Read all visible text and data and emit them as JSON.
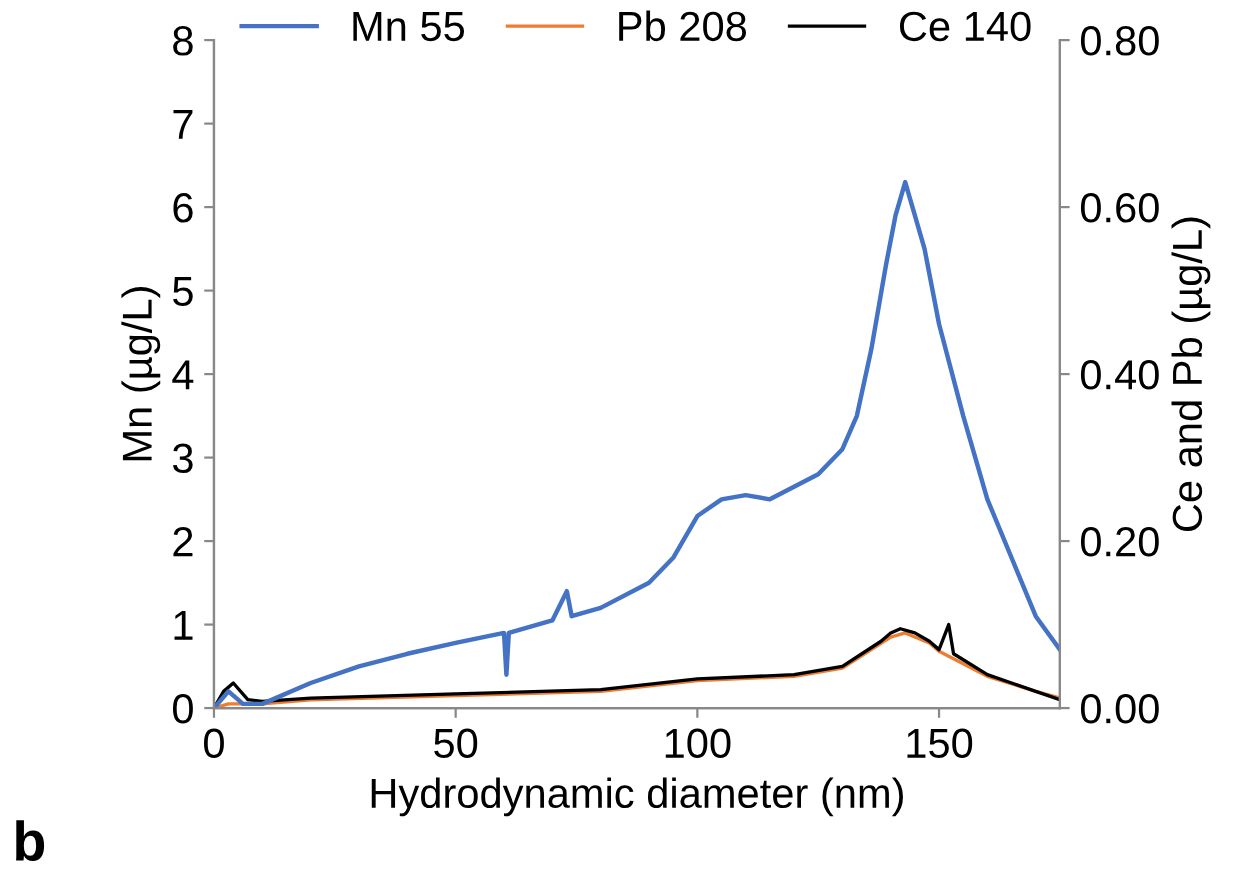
{
  "chart_data": {
    "type": "line",
    "xlabel": "Hydrodynamic diameter (nm)",
    "ylabel": "Mn (µg/L)",
    "y2label": "Ce and Pb (µg/L)",
    "annotations": [
      "b"
    ],
    "xlim": [
      0,
      175
    ],
    "xticks": [
      0,
      50,
      100,
      150
    ],
    "ylim": [
      0,
      8
    ],
    "yticks": [
      0,
      1,
      2,
      3,
      4,
      5,
      6,
      7,
      8
    ],
    "y2lim": [
      0,
      0.8
    ],
    "y2ticks": [
      {
        "value": 0,
        "label": "0.00"
      },
      {
        "value": 0.2,
        "label": "0.20"
      },
      {
        "value": 0.4,
        "label": "0.40"
      },
      {
        "value": 0.6,
        "label": "0.60"
      },
      {
        "value": 0.8,
        "label": "0.80"
      }
    ],
    "grid": false,
    "legend": "top",
    "marker": "none",
    "line_style": "solid",
    "series": [
      {
        "name": "Mn 55",
        "color": "#4472c4",
        "x": [
          0,
          3,
          6,
          10,
          20,
          30,
          40,
          50,
          60,
          60.5,
          61,
          70,
          73,
          74,
          80,
          90,
          95,
          100,
          105,
          110,
          115,
          120,
          125,
          130,
          133,
          136,
          139,
          141,
          143,
          145,
          147,
          150,
          155,
          160,
          165,
          170,
          175
        ],
        "values": [
          0,
          0.2,
          0.05,
          0.05,
          0.3,
          0.5,
          0.65,
          0.78,
          0.9,
          0.4,
          0.9,
          1.05,
          1.4,
          1.1,
          1.2,
          1.5,
          1.8,
          2.3,
          2.5,
          2.55,
          2.5,
          2.65,
          2.8,
          3.1,
          3.5,
          4.3,
          5.3,
          5.9,
          6.3,
          5.9,
          5.5,
          4.6,
          3.5,
          2.5,
          1.8,
          1.1,
          0.7
        ]
      },
      {
        "name": "Pb 208",
        "color": "#ed7d31",
        "axis": "y2",
        "x": [
          0,
          3,
          10,
          20,
          50,
          80,
          100,
          120,
          130,
          140,
          143,
          148,
          150,
          160,
          170,
          175
        ],
        "values": [
          0,
          0.005,
          0.005,
          0.01,
          0.015,
          0.02,
          0.033,
          0.038,
          0.048,
          0.085,
          0.09,
          0.078,
          0.068,
          0.038,
          0.02,
          0.012
        ]
      },
      {
        "name": "Ce 140",
        "color": "#000000",
        "axis": "y2",
        "x": [
          0,
          2,
          4,
          7,
          10,
          20,
          50,
          80,
          100,
          120,
          130,
          138,
          140,
          142,
          145,
          148,
          150,
          152,
          153,
          160,
          165,
          170,
          175
        ],
        "values": [
          0,
          0.02,
          0.03,
          0.01,
          0.008,
          0.012,
          0.017,
          0.022,
          0.035,
          0.04,
          0.05,
          0.08,
          0.09,
          0.095,
          0.09,
          0.08,
          0.07,
          0.1,
          0.065,
          0.04,
          0.03,
          0.02,
          0.01
        ]
      }
    ]
  }
}
